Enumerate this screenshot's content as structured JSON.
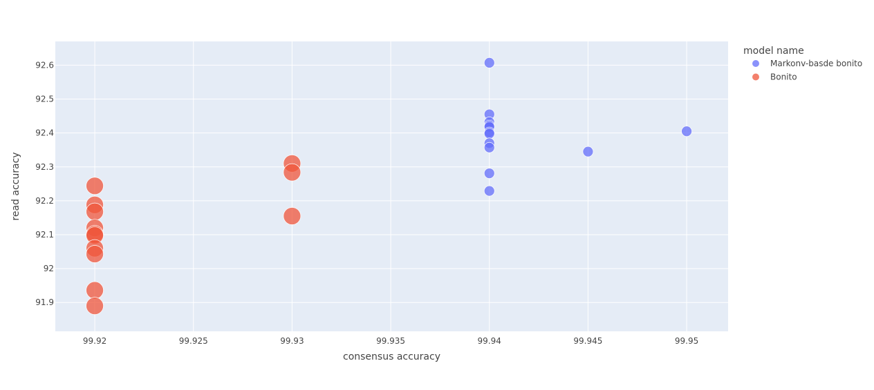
{
  "chart_data": {
    "type": "scatter",
    "title": "",
    "xlabel": "consensus accuracy",
    "ylabel": "read accuracy",
    "xlim": [
      99.918,
      99.9521
    ],
    "ylim": [
      91.815,
      92.67
    ],
    "x_ticks": [
      99.92,
      99.925,
      99.93,
      99.935,
      99.94,
      99.945,
      99.95
    ],
    "x_tick_labels": [
      "99.92",
      "99.925",
      "99.93",
      "99.935",
      "99.94",
      "99.945",
      "99.95"
    ],
    "y_ticks": [
      91.9,
      92.0,
      92.1,
      92.2,
      92.3,
      92.4,
      92.5,
      92.6
    ],
    "y_tick_labels": [
      "91.9",
      "92",
      "92.1",
      "92.2",
      "92.3",
      "92.4",
      "92.5",
      "92.6"
    ],
    "grid": true,
    "legend": {
      "title": "model name",
      "placement": "right"
    },
    "series": [
      {
        "name": "Markonv-basde bonito",
        "color": "#636efa",
        "marker_size": "small",
        "points": [
          {
            "x": 99.94,
            "y": 92.607
          },
          {
            "x": 99.94,
            "y": 92.455
          },
          {
            "x": 99.94,
            "y": 92.432
          },
          {
            "x": 99.94,
            "y": 92.422
          },
          {
            "x": 99.94,
            "y": 92.418
          },
          {
            "x": 99.94,
            "y": 92.402
          },
          {
            "x": 99.94,
            "y": 92.398
          },
          {
            "x": 99.94,
            "y": 92.37
          },
          {
            "x": 99.94,
            "y": 92.357
          },
          {
            "x": 99.94,
            "y": 92.281
          },
          {
            "x": 99.94,
            "y": 92.229
          },
          {
            "x": 99.945,
            "y": 92.345
          },
          {
            "x": 99.95,
            "y": 92.405
          }
        ]
      },
      {
        "name": "Bonito",
        "color": "#ef553b",
        "marker_size": "large",
        "points": [
          {
            "x": 99.92,
            "y": 92.244
          },
          {
            "x": 99.92,
            "y": 92.188
          },
          {
            "x": 99.92,
            "y": 92.168
          },
          {
            "x": 99.92,
            "y": 92.12
          },
          {
            "x": 99.92,
            "y": 92.102
          },
          {
            "x": 99.92,
            "y": 92.098
          },
          {
            "x": 99.92,
            "y": 92.06
          },
          {
            "x": 99.92,
            "y": 92.043
          },
          {
            "x": 99.92,
            "y": 91.936
          },
          {
            "x": 99.92,
            "y": 91.89
          },
          {
            "x": 99.93,
            "y": 92.31
          },
          {
            "x": 99.93,
            "y": 92.284
          },
          {
            "x": 99.93,
            "y": 92.155
          }
        ]
      }
    ]
  }
}
